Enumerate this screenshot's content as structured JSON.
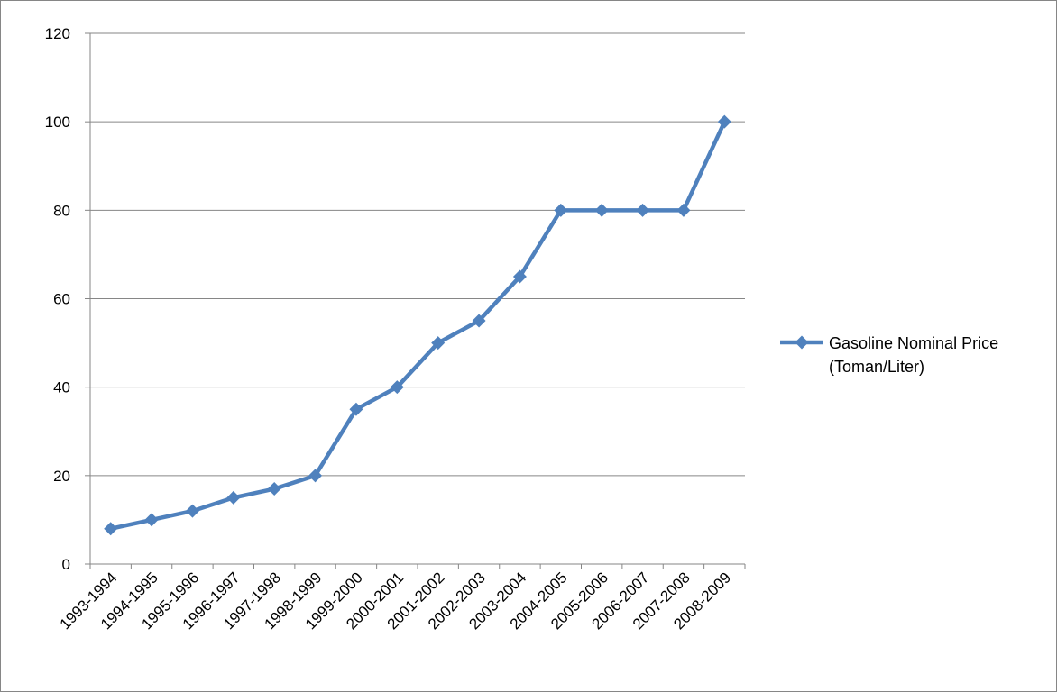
{
  "chart_data": {
    "type": "line",
    "categories": [
      "1993-1994",
      "1994-1995",
      "1995-1996",
      "1996-1997",
      "1997-1998",
      "1998-1999",
      "1999-2000",
      "2000-2001",
      "2001-2002",
      "2002-2003",
      "2003-2004",
      "2004-2005",
      "2005-2006",
      "2006-2007",
      "2007-2008",
      "2008-2009"
    ],
    "series": [
      {
        "name": "Gasoline Nominal Price (Toman/Liter)",
        "name_lines": [
          "Gasoline Nominal Price",
          "(Toman/Liter)"
        ],
        "values": [
          8,
          10,
          12,
          15,
          17,
          20,
          35,
          40,
          50,
          55,
          65,
          80,
          80,
          80,
          80,
          100
        ],
        "color": "#4F81BD",
        "marker": "diamond"
      }
    ],
    "title": "",
    "xlabel": "",
    "ylabel": "",
    "ylim": [
      0,
      120
    ],
    "yticks": [
      0,
      20,
      40,
      60,
      80,
      100,
      120
    ],
    "grid": true,
    "legend_position": "right"
  }
}
